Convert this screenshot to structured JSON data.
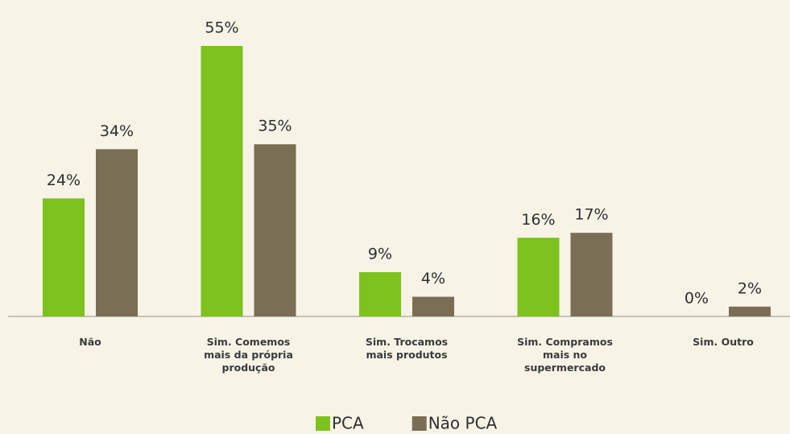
{
  "chart_data": {
    "type": "bar",
    "categories": [
      "Não",
      "Sim. Comemos\nmais da própria\nprodução",
      "Sim. Trocamos\nmais produtos",
      "Sim. Compramos\nmais no\nsupermercado",
      "Sim. Outro"
    ],
    "series": [
      {
        "name": "PCA",
        "color": "#7dc21e",
        "values": [
          24,
          55,
          9,
          16,
          0
        ],
        "value_labels": [
          "24%",
          "55%",
          "9%",
          "16%",
          "0%"
        ]
      },
      {
        "name": "Não PCA",
        "color": "#7a6e55",
        "values": [
          34,
          35,
          4,
          17,
          2
        ],
        "value_labels": [
          "34%",
          "35%",
          "4%",
          "17%",
          "2%"
        ]
      }
    ],
    "legend": "bottom"
  }
}
